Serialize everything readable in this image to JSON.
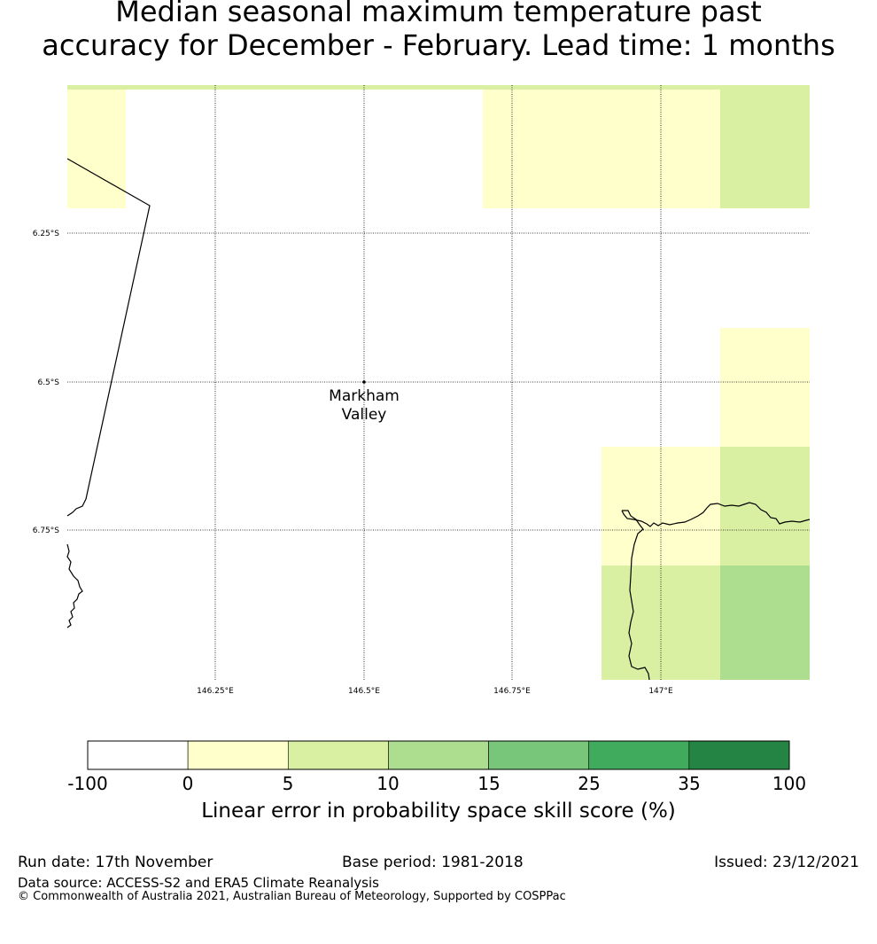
{
  "title": {
    "line1": "Median seasonal maximum temperature past",
    "line2": "accuracy for December - February. Lead time: 1 months"
  },
  "map": {
    "lat_labels": [
      "6.25°S",
      "6.5°S",
      "6.75°S"
    ],
    "lon_labels": [
      "146.25°E",
      "146.5°E",
      "146.75°E",
      "147°E"
    ],
    "place": {
      "name_line1": "Markham",
      "name_line2": "Valley",
      "lon": 146.5,
      "lat": -6.5
    }
  },
  "colorbar": {
    "label": "Linear error in probability space skill score (%)",
    "ticks": [
      "-100",
      "0",
      "5",
      "10",
      "15",
      "25",
      "35",
      "100"
    ],
    "colors": [
      "#ffffff",
      "#ffffcc",
      "#d9f0a3",
      "#addd8e",
      "#78c679",
      "#41ab5d",
      "#238443"
    ]
  },
  "footer": {
    "run_date": "Run date: 17th November",
    "base_period": "Base period: 1981-2018",
    "issued": "Issued: 23/12/2021",
    "data_source": "Data source: ACCESS-S2 and ERA5 Climate Reanalysis",
    "copyright": "© Commonwealth of Australia 2021, Australian Bureau of Meteorology, Supported by COSPPac"
  }
}
